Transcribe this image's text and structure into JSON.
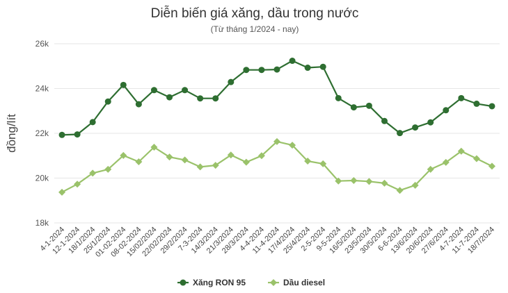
{
  "chart_data": {
    "type": "line",
    "title": "Diễn biến giá xăng, dầu trong nước",
    "subtitle": "(Từ tháng 1/2024 - nay)",
    "ylabel": "đồng/lít",
    "xlabel": "",
    "ylim": [
      18000,
      26000
    ],
    "yticks": [
      18000,
      20000,
      22000,
      24000,
      26000
    ],
    "ytick_labels": [
      "18k",
      "20k",
      "22k",
      "24k",
      "26k"
    ],
    "grid": true,
    "legend_position": "bottom",
    "categories": [
      "4-1-2024",
      "12-1-2024",
      "18/1/2024",
      "25/1/2024",
      "01-02-2024",
      "08-02-2024",
      "15/02/2024",
      "22/02/2024",
      "29/2/2024",
      "7-3-2024",
      "14/3/2024",
      "21/3/2024",
      "28/3/2024",
      "4-4-2024",
      "11-4-2024",
      "17/4/2024",
      "25/4/2024",
      "2-5-2024",
      "9-5-2024",
      "16/5/2024",
      "23/5/2024",
      "30/5/2024",
      "6-6-2024",
      "13/6/2024",
      "20/6/2024",
      "27/6/2024",
      "4-7-2024",
      "11-7-2024",
      "18/7/2024"
    ],
    "series": [
      {
        "name": "Xăng RON 95",
        "color": "#2e6e31",
        "values": [
          21930,
          21950,
          22500,
          23420,
          24160,
          23300,
          23930,
          23610,
          23930,
          23560,
          23560,
          24290,
          24830,
          24830,
          24850,
          25240,
          24930,
          24970,
          23570,
          23160,
          23230,
          22550,
          22010,
          22260,
          22490,
          23030,
          23570,
          23320,
          23210
        ]
      },
      {
        "name": "Dầu diesel",
        "color": "#9ac26a",
        "values": [
          19370,
          19730,
          20220,
          20390,
          21010,
          20730,
          21380,
          20940,
          20810,
          20500,
          20570,
          21030,
          20710,
          21000,
          21630,
          21470,
          20760,
          20640,
          19870,
          19890,
          19850,
          19770,
          19450,
          19680,
          20390,
          20700,
          21200,
          20870,
          20530
        ]
      }
    ]
  }
}
